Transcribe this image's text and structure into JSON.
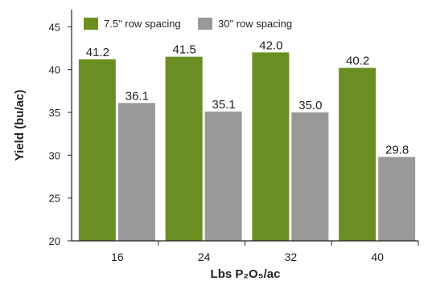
{
  "chart_data": {
    "type": "bar",
    "categories": [
      "16",
      "24",
      "32",
      "40"
    ],
    "series": [
      {
        "name": "7.5\" row spacing",
        "color": "#6b8e23",
        "values": [
          41.2,
          41.5,
          42.0,
          40.2
        ]
      },
      {
        "name": "30\" row spacing",
        "color": "#999999",
        "values": [
          36.1,
          35.1,
          35.0,
          29.8
        ]
      }
    ],
    "data_labels": [
      [
        "41.2",
        "41.5",
        "42.0",
        "40.2"
      ],
      [
        "36.1",
        "35.1",
        "35.0",
        "29.8"
      ]
    ],
    "title": "",
    "xlabel": "Lbs P₂O₅/ac",
    "ylabel": "Yield (bu/ac)",
    "ylim": [
      20,
      47
    ],
    "yticks": [
      "20",
      "25",
      "30",
      "35",
      "40",
      "45"
    ],
    "grid": false,
    "legend_position": "top-left"
  }
}
